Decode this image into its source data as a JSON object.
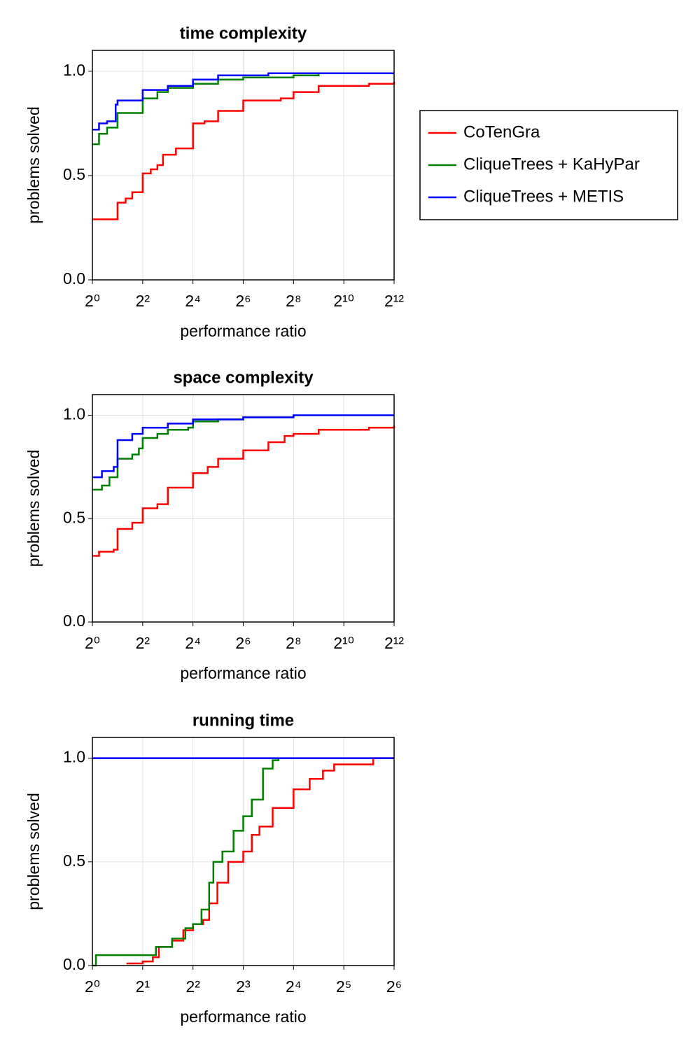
{
  "chart_data": [
    {
      "type": "line",
      "step": true,
      "title": "time complexity",
      "xlabel": "performance ratio",
      "ylabel": "problems solved",
      "xscale": "log2",
      "grid": true,
      "legend": "right",
      "xlim": [
        1,
        4096
      ],
      "ylim": [
        0,
        1.1
      ],
      "xticks": [
        {
          "value": 1,
          "label": "2⁰"
        },
        {
          "value": 4,
          "label": "2²"
        },
        {
          "value": 16,
          "label": "2⁴"
        },
        {
          "value": 64,
          "label": "2⁶"
        },
        {
          "value": 256,
          "label": "2⁸"
        },
        {
          "value": 1024,
          "label": "2¹⁰"
        },
        {
          "value": 4096,
          "label": "2¹²"
        }
      ],
      "yticks": [
        {
          "value": 0,
          "label": "0.0"
        },
        {
          "value": 0.5,
          "label": "0.5"
        },
        {
          "value": 1,
          "label": "1.0"
        }
      ],
      "series": [
        {
          "name": "CoTenGra",
          "color": "#ff0000",
          "x": [
            1,
            2,
            2.5,
            3,
            4,
            5,
            6,
            7,
            10,
            16,
            22,
            32,
            64,
            180,
            256,
            512,
            2048,
            4096
          ],
          "values": [
            0.29,
            0.37,
            0.39,
            0.42,
            0.51,
            0.53,
            0.55,
            0.6,
            0.63,
            0.75,
            0.76,
            0.81,
            0.86,
            0.87,
            0.9,
            0.93,
            0.94,
            0.95
          ]
        },
        {
          "name": "CliqueTrees + KaHyPar",
          "color": "#008000",
          "x": [
            1,
            1.2,
            1.5,
            2,
            4,
            6,
            8,
            16,
            32,
            64,
            256,
            512,
            600
          ],
          "values": [
            0.65,
            0.7,
            0.73,
            0.8,
            0.87,
            0.9,
            0.92,
            0.94,
            0.96,
            0.97,
            0.98,
            0.99,
            0.99
          ]
        },
        {
          "name": "CliqueTrees + METIS",
          "color": "#0000ff",
          "x": [
            1,
            1.2,
            1.5,
            1.9,
            2,
            4,
            8,
            16,
            32,
            128,
            4096
          ],
          "values": [
            0.72,
            0.75,
            0.76,
            0.84,
            0.86,
            0.91,
            0.93,
            0.96,
            0.98,
            0.99,
            0.99
          ]
        }
      ]
    },
    {
      "type": "line",
      "step": true,
      "title": "space complexity",
      "xlabel": "performance ratio",
      "ylabel": "problems solved",
      "xscale": "log2",
      "grid": true,
      "xlim": [
        1,
        4096
      ],
      "ylim": [
        0,
        1.1
      ],
      "xticks": [
        {
          "value": 1,
          "label": "2⁰"
        },
        {
          "value": 4,
          "label": "2²"
        },
        {
          "value": 16,
          "label": "2⁴"
        },
        {
          "value": 64,
          "label": "2⁶"
        },
        {
          "value": 256,
          "label": "2⁸"
        },
        {
          "value": 1024,
          "label": "2¹⁰"
        },
        {
          "value": 4096,
          "label": "2¹²"
        }
      ],
      "yticks": [
        {
          "value": 0,
          "label": "0.0"
        },
        {
          "value": 0.5,
          "label": "0.5"
        },
        {
          "value": 1,
          "label": "1.0"
        }
      ],
      "series": [
        {
          "name": "CoTenGra",
          "color": "#ff0000",
          "x": [
            1,
            1.2,
            1.8,
            2,
            3,
            4,
            6,
            8,
            14,
            16,
            24,
            32,
            64,
            128,
            200,
            256,
            512,
            2048,
            4096
          ],
          "values": [
            0.32,
            0.34,
            0.35,
            0.45,
            0.48,
            0.55,
            0.57,
            0.65,
            0.65,
            0.72,
            0.75,
            0.79,
            0.83,
            0.87,
            0.9,
            0.91,
            0.93,
            0.94,
            0.95
          ]
        },
        {
          "name": "CliqueTrees + KaHyPar",
          "color": "#008000",
          "x": [
            1,
            1.3,
            1.6,
            2,
            3,
            3.6,
            4,
            6,
            8,
            14,
            16,
            32,
            64,
            256
          ],
          "values": [
            0.64,
            0.66,
            0.7,
            0.79,
            0.81,
            0.84,
            0.89,
            0.91,
            0.93,
            0.94,
            0.97,
            0.98,
            0.99,
            0.99
          ]
        },
        {
          "name": "CliqueTrees + METIS",
          "color": "#0000ff",
          "x": [
            1,
            1.3,
            1.8,
            2,
            3,
            4,
            8,
            16,
            64,
            256,
            4096
          ],
          "values": [
            0.7,
            0.73,
            0.75,
            0.88,
            0.91,
            0.94,
            0.96,
            0.98,
            0.99,
            1.0,
            1.0
          ]
        }
      ]
    },
    {
      "type": "line",
      "step": true,
      "title": "running time",
      "xlabel": "performance ratio",
      "ylabel": "problems solved",
      "xscale": "log2",
      "grid": true,
      "xlim": [
        1,
        64
      ],
      "ylim": [
        0,
        1.1
      ],
      "xticks": [
        {
          "value": 1,
          "label": "2⁰"
        },
        {
          "value": 2,
          "label": "2¹"
        },
        {
          "value": 4,
          "label": "2²"
        },
        {
          "value": 8,
          "label": "2³"
        },
        {
          "value": 16,
          "label": "2⁴"
        },
        {
          "value": 32,
          "label": "2⁵"
        },
        {
          "value": 64,
          "label": "2⁶"
        }
      ],
      "yticks": [
        {
          "value": 0,
          "label": "0.0"
        },
        {
          "value": 0.5,
          "label": "0.5"
        },
        {
          "value": 1,
          "label": "1.0"
        }
      ],
      "series": [
        {
          "name": "CoTenGra",
          "color": "#ff0000",
          "x": [
            1.6,
            2,
            2.3,
            2.5,
            3,
            3.5,
            4,
            4.6,
            5,
            5.6,
            6.5,
            8,
            9,
            10,
            12,
            16,
            20,
            24,
            28,
            40,
            48,
            64
          ],
          "values": [
            0.01,
            0.02,
            0.04,
            0.09,
            0.12,
            0.17,
            0.2,
            0.22,
            0.3,
            0.4,
            0.5,
            0.55,
            0.63,
            0.67,
            0.76,
            0.85,
            0.9,
            0.94,
            0.97,
            0.97,
            1.0,
            1.0
          ]
        },
        {
          "name": "CliqueTrees + KaHyPar",
          "color": "#008000",
          "x": [
            1,
            1.05,
            2.3,
            2.4,
            3,
            3.6,
            4,
            4.5,
            5,
            5.3,
            6,
            7,
            8,
            9,
            10.5,
            12,
            13
          ],
          "values": [
            0.0,
            0.05,
            0.05,
            0.09,
            0.13,
            0.18,
            0.2,
            0.27,
            0.4,
            0.5,
            0.55,
            0.65,
            0.72,
            0.8,
            0.95,
            0.99,
            1.0
          ]
        },
        {
          "name": "CliqueTrees + METIS",
          "color": "#0000ff",
          "x": [
            1,
            64
          ],
          "values": [
            1.0,
            1.0
          ]
        }
      ]
    }
  ]
}
